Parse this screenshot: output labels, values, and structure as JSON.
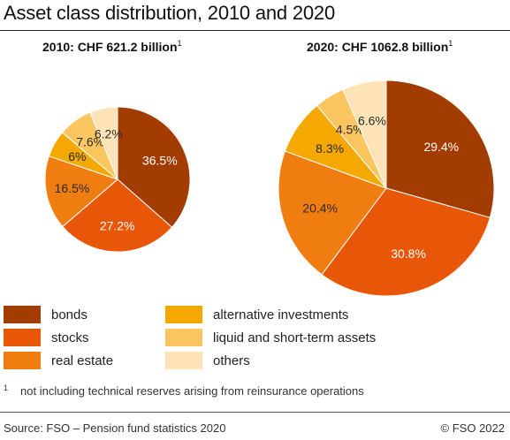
{
  "title": "Asset class distribution, 2010 and 2020",
  "footnote": {
    "mark": "1",
    "text": "not including technical reserves arising from reinsurance operations"
  },
  "source": "Source: FSO – Pension fund statistics 2020",
  "copyright": "© FSO 2022",
  "legend": [
    {
      "label": "bonds",
      "color": "#a33c00"
    },
    {
      "label": "alternative investments",
      "color": "#f5a800"
    },
    {
      "label": "stocks",
      "color": "#e85708"
    },
    {
      "label": "liquid and short-term assets",
      "color": "#fbc55f"
    },
    {
      "label": "real estate",
      "color": "#f07d10"
    },
    {
      "label": "others",
      "color": "#fde3b5"
    }
  ],
  "chart_data": [
    {
      "type": "pie",
      "title": "2010: CHF 621.2 billion",
      "title_footnote": "1",
      "categories": [
        "bonds",
        "stocks",
        "real estate",
        "alternative investments",
        "liquid and short-term assets",
        "others"
      ],
      "values": [
        36.5,
        27.2,
        16.5,
        6,
        7.6,
        6.2
      ],
      "labels": [
        "36.5%",
        "27.2%",
        "16.5%",
        "6%",
        "7.6%",
        "6.2%"
      ],
      "colors": [
        "#a33c00",
        "#e85708",
        "#f07d10",
        "#f5a800",
        "#fbc55f",
        "#fde3b5"
      ]
    },
    {
      "type": "pie",
      "title": "2020: CHF 1062.8 billion",
      "title_footnote": "1",
      "categories": [
        "bonds",
        "stocks",
        "real estate",
        "alternative investments",
        "liquid and short-term assets",
        "others"
      ],
      "values": [
        29.4,
        30.8,
        20.4,
        8.3,
        4.5,
        6.6
      ],
      "labels": [
        "29.4%",
        "30.8%",
        "20.4%",
        "8.3%",
        "4.5%",
        "6.6%"
      ],
      "colors": [
        "#a33c00",
        "#e85708",
        "#f07d10",
        "#f5a800",
        "#fbc55f",
        "#fde3b5"
      ]
    }
  ]
}
